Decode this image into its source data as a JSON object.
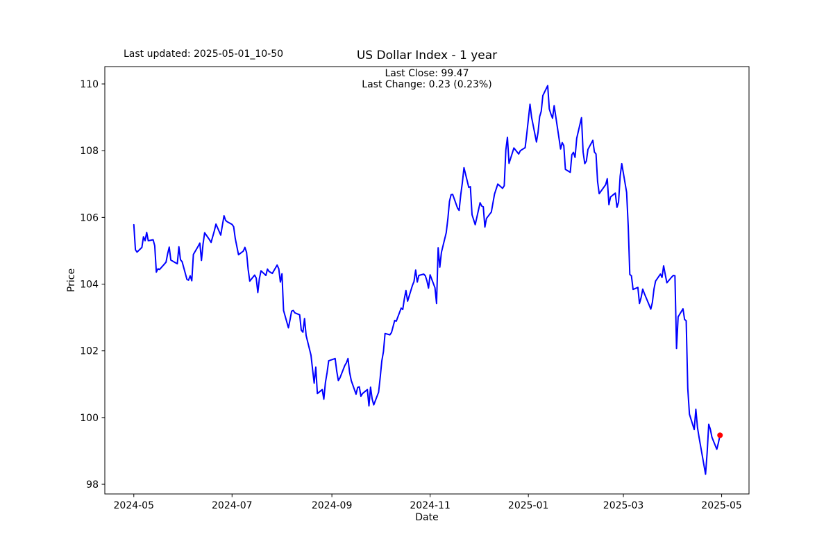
{
  "header": {
    "last_updated": "Last updated: 2025-05-01_10-50"
  },
  "chart_data": {
    "type": "line",
    "title": "US Dollar Index - 1 year",
    "annotations": {
      "line1": "Last Close: 99.47",
      "line2": "Last Change: 0.23 (0.23%)"
    },
    "xlabel": "Date",
    "ylabel": "Price",
    "grid": false,
    "legend": "none",
    "line_color": "#0000ff",
    "marker": {
      "x": "2025-04-30",
      "y": 99.47,
      "color": "#ff0000"
    },
    "xlim": [
      "2024-04-13",
      "2025-05-18"
    ],
    "ylim": [
      97.71,
      110.52
    ],
    "x_ticks": [
      {
        "date": "2024-05-01",
        "label": "2024-05"
      },
      {
        "date": "2024-07-01",
        "label": "2024-07"
      },
      {
        "date": "2024-09-01",
        "label": "2024-09"
      },
      {
        "date": "2024-11-01",
        "label": "2024-11"
      },
      {
        "date": "2025-01-01",
        "label": "2025-01"
      },
      {
        "date": "2025-03-01",
        "label": "2025-03"
      },
      {
        "date": "2025-05-01",
        "label": "2025-05"
      }
    ],
    "y_ticks": [
      98,
      100,
      102,
      104,
      106,
      108,
      110
    ],
    "series": [
      {
        "name": "US Dollar Index",
        "points": [
          [
            "2024-05-01",
            105.78
          ],
          [
            "2024-05-02",
            105.03
          ],
          [
            "2024-05-03",
            104.96
          ],
          [
            "2024-05-06",
            105.1
          ],
          [
            "2024-05-07",
            105.42
          ],
          [
            "2024-05-08",
            105.3
          ],
          [
            "2024-05-09",
            105.55
          ],
          [
            "2024-05-10",
            105.3
          ],
          [
            "2024-05-13",
            105.33
          ],
          [
            "2024-05-14",
            105.15
          ],
          [
            "2024-05-15",
            104.36
          ],
          [
            "2024-05-16",
            104.46
          ],
          [
            "2024-05-17",
            104.44
          ],
          [
            "2024-05-20",
            104.6
          ],
          [
            "2024-05-21",
            104.66
          ],
          [
            "2024-05-22",
            104.91
          ],
          [
            "2024-05-23",
            105.11
          ],
          [
            "2024-05-24",
            104.72
          ],
          [
            "2024-05-28",
            104.61
          ],
          [
            "2024-05-29",
            105.12
          ],
          [
            "2024-05-30",
            104.73
          ],
          [
            "2024-05-31",
            104.67
          ],
          [
            "2024-06-03",
            104.14
          ],
          [
            "2024-06-04",
            104.12
          ],
          [
            "2024-06-05",
            104.25
          ],
          [
            "2024-06-06",
            104.1
          ],
          [
            "2024-06-07",
            104.89
          ],
          [
            "2024-06-10",
            105.14
          ],
          [
            "2024-06-11",
            105.23
          ],
          [
            "2024-06-12",
            104.71
          ],
          [
            "2024-06-13",
            105.2
          ],
          [
            "2024-06-14",
            105.54
          ],
          [
            "2024-06-17",
            105.33
          ],
          [
            "2024-06-18",
            105.25
          ],
          [
            "2024-06-20",
            105.6
          ],
          [
            "2024-06-21",
            105.8
          ],
          [
            "2024-06-24",
            105.47
          ],
          [
            "2024-06-26",
            106.05
          ],
          [
            "2024-06-27",
            105.91
          ],
          [
            "2024-06-28",
            105.87
          ],
          [
            "2024-07-01",
            105.79
          ],
          [
            "2024-07-02",
            105.72
          ],
          [
            "2024-07-03",
            105.37
          ],
          [
            "2024-07-05",
            104.88
          ],
          [
            "2024-07-08",
            104.99
          ],
          [
            "2024-07-09",
            105.1
          ],
          [
            "2024-07-10",
            104.95
          ],
          [
            "2024-07-11",
            104.44
          ],
          [
            "2024-07-12",
            104.09
          ],
          [
            "2024-07-15",
            104.27
          ],
          [
            "2024-07-16",
            104.18
          ],
          [
            "2024-07-17",
            103.75
          ],
          [
            "2024-07-18",
            104.17
          ],
          [
            "2024-07-19",
            104.4
          ],
          [
            "2024-07-22",
            104.26
          ],
          [
            "2024-07-23",
            104.45
          ],
          [
            "2024-07-24",
            104.38
          ],
          [
            "2024-07-25",
            104.35
          ],
          [
            "2024-07-26",
            104.32
          ],
          [
            "2024-07-29",
            104.57
          ],
          [
            "2024-07-30",
            104.46
          ],
          [
            "2024-07-31",
            104.06
          ],
          [
            "2024-08-01",
            104.31
          ],
          [
            "2024-08-02",
            103.21
          ],
          [
            "2024-08-05",
            102.69
          ],
          [
            "2024-08-06",
            102.93
          ],
          [
            "2024-08-07",
            103.19
          ],
          [
            "2024-08-08",
            103.21
          ],
          [
            "2024-08-09",
            103.14
          ],
          [
            "2024-08-12",
            103.08
          ],
          [
            "2024-08-13",
            102.62
          ],
          [
            "2024-08-14",
            102.56
          ],
          [
            "2024-08-15",
            102.97
          ],
          [
            "2024-08-16",
            102.46
          ],
          [
            "2024-08-19",
            101.87
          ],
          [
            "2024-08-20",
            101.44
          ],
          [
            "2024-08-21",
            101.03
          ],
          [
            "2024-08-22",
            101.51
          ],
          [
            "2024-08-23",
            100.72
          ],
          [
            "2024-08-26",
            100.84
          ],
          [
            "2024-08-27",
            100.55
          ],
          [
            "2024-08-28",
            101.05
          ],
          [
            "2024-08-29",
            101.35
          ],
          [
            "2024-08-30",
            101.7
          ],
          [
            "2024-09-03",
            101.77
          ],
          [
            "2024-09-04",
            101.39
          ],
          [
            "2024-09-05",
            101.11
          ],
          [
            "2024-09-06",
            101.19
          ],
          [
            "2024-09-09",
            101.56
          ],
          [
            "2024-09-10",
            101.64
          ],
          [
            "2024-09-11",
            101.77
          ],
          [
            "2024-09-12",
            101.36
          ],
          [
            "2024-09-13",
            101.11
          ],
          [
            "2024-09-16",
            100.7
          ],
          [
            "2024-09-17",
            100.9
          ],
          [
            "2024-09-18",
            100.92
          ],
          [
            "2024-09-19",
            100.64
          ],
          [
            "2024-09-20",
            100.72
          ],
          [
            "2024-09-23",
            100.84
          ],
          [
            "2024-09-24",
            100.35
          ],
          [
            "2024-09-25",
            100.91
          ],
          [
            "2024-09-26",
            100.56
          ],
          [
            "2024-09-27",
            100.38
          ],
          [
            "2024-09-30",
            100.76
          ],
          [
            "2024-10-01",
            101.2
          ],
          [
            "2024-10-02",
            101.69
          ],
          [
            "2024-10-03",
            101.98
          ],
          [
            "2024-10-04",
            102.52
          ],
          [
            "2024-10-07",
            102.48
          ],
          [
            "2024-10-08",
            102.55
          ],
          [
            "2024-10-10",
            102.91
          ],
          [
            "2024-10-11",
            102.89
          ],
          [
            "2024-10-14",
            103.28
          ],
          [
            "2024-10-15",
            103.24
          ],
          [
            "2024-10-16",
            103.56
          ],
          [
            "2024-10-17",
            103.81
          ],
          [
            "2024-10-18",
            103.49
          ],
          [
            "2024-10-21",
            103.96
          ],
          [
            "2024-10-22",
            104.08
          ],
          [
            "2024-10-23",
            104.42
          ],
          [
            "2024-10-24",
            104.06
          ],
          [
            "2024-10-25",
            104.26
          ],
          [
            "2024-10-28",
            104.3
          ],
          [
            "2024-10-29",
            104.25
          ],
          [
            "2024-10-30",
            104.1
          ],
          [
            "2024-10-31",
            103.88
          ],
          [
            "2024-11-01",
            104.28
          ],
          [
            "2024-11-04",
            103.89
          ],
          [
            "2024-11-05",
            103.42
          ],
          [
            "2024-11-06",
            105.09
          ],
          [
            "2024-11-07",
            104.51
          ],
          [
            "2024-11-08",
            104.95
          ],
          [
            "2024-11-11",
            105.54
          ],
          [
            "2024-11-12",
            105.96
          ],
          [
            "2024-11-13",
            106.48
          ],
          [
            "2024-11-14",
            106.68
          ],
          [
            "2024-11-15",
            106.69
          ],
          [
            "2024-11-18",
            106.28
          ],
          [
            "2024-11-19",
            106.21
          ],
          [
            "2024-11-20",
            106.67
          ],
          [
            "2024-11-21",
            107.03
          ],
          [
            "2024-11-22",
            107.49
          ],
          [
            "2024-11-25",
            106.9
          ],
          [
            "2024-11-26",
            106.92
          ],
          [
            "2024-11-27",
            106.08
          ],
          [
            "2024-11-29",
            105.78
          ],
          [
            "2024-12-02",
            106.44
          ],
          [
            "2024-12-03",
            106.34
          ],
          [
            "2024-12-04",
            106.32
          ],
          [
            "2024-12-05",
            105.71
          ],
          [
            "2024-12-06",
            105.97
          ],
          [
            "2024-12-09",
            106.16
          ],
          [
            "2024-12-11",
            106.7
          ],
          [
            "2024-12-13",
            107.0
          ],
          [
            "2024-12-16",
            106.87
          ],
          [
            "2024-12-17",
            106.95
          ],
          [
            "2024-12-18",
            108.02
          ],
          [
            "2024-12-19",
            108.4
          ],
          [
            "2024-12-20",
            107.62
          ],
          [
            "2024-12-23",
            108.08
          ],
          [
            "2024-12-26",
            107.9
          ],
          [
            "2024-12-27",
            108.0
          ],
          [
            "2024-12-30",
            108.09
          ],
          [
            "2024-12-31",
            108.49
          ],
          [
            "2025-01-02",
            109.39
          ],
          [
            "2025-01-03",
            109.0
          ],
          [
            "2025-01-06",
            108.26
          ],
          [
            "2025-01-07",
            108.55
          ],
          [
            "2025-01-08",
            109.02
          ],
          [
            "2025-01-09",
            109.18
          ],
          [
            "2025-01-10",
            109.65
          ],
          [
            "2025-01-13",
            109.95
          ],
          [
            "2025-01-14",
            109.25
          ],
          [
            "2025-01-15",
            109.1
          ],
          [
            "2025-01-16",
            108.97
          ],
          [
            "2025-01-17",
            109.35
          ],
          [
            "2025-01-21",
            108.05
          ],
          [
            "2025-01-22",
            108.24
          ],
          [
            "2025-01-23",
            108.15
          ],
          [
            "2025-01-24",
            107.44
          ],
          [
            "2025-01-27",
            107.35
          ],
          [
            "2025-01-28",
            107.88
          ],
          [
            "2025-01-29",
            107.95
          ],
          [
            "2025-01-30",
            107.8
          ],
          [
            "2025-01-31",
            108.37
          ],
          [
            "2025-02-03",
            108.99
          ],
          [
            "2025-02-04",
            107.96
          ],
          [
            "2025-02-05",
            107.61
          ],
          [
            "2025-02-06",
            107.69
          ],
          [
            "2025-02-07",
            108.04
          ],
          [
            "2025-02-10",
            108.31
          ],
          [
            "2025-02-11",
            107.96
          ],
          [
            "2025-02-12",
            107.9
          ],
          [
            "2025-02-13",
            107.07
          ],
          [
            "2025-02-14",
            106.71
          ],
          [
            "2025-02-18",
            106.98
          ],
          [
            "2025-02-19",
            107.16
          ],
          [
            "2025-02-20",
            106.38
          ],
          [
            "2025-02-21",
            106.61
          ],
          [
            "2025-02-24",
            106.73
          ],
          [
            "2025-02-25",
            106.3
          ],
          [
            "2025-02-26",
            106.46
          ],
          [
            "2025-02-27",
            107.24
          ],
          [
            "2025-02-28",
            107.61
          ],
          [
            "2025-03-03",
            106.75
          ],
          [
            "2025-03-04",
            105.74
          ],
          [
            "2025-03-05",
            104.29
          ],
          [
            "2025-03-06",
            104.25
          ],
          [
            "2025-03-07",
            103.84
          ],
          [
            "2025-03-10",
            103.9
          ],
          [
            "2025-03-11",
            103.42
          ],
          [
            "2025-03-12",
            103.6
          ],
          [
            "2025-03-13",
            103.85
          ],
          [
            "2025-03-14",
            103.72
          ],
          [
            "2025-03-17",
            103.37
          ],
          [
            "2025-03-18",
            103.25
          ],
          [
            "2025-03-19",
            103.45
          ],
          [
            "2025-03-20",
            103.85
          ],
          [
            "2025-03-21",
            104.09
          ],
          [
            "2025-03-24",
            104.3
          ],
          [
            "2025-03-25",
            104.2
          ],
          [
            "2025-03-26",
            104.55
          ],
          [
            "2025-03-27",
            104.28
          ],
          [
            "2025-03-28",
            104.04
          ],
          [
            "2025-03-31",
            104.21
          ],
          [
            "2025-04-01",
            104.26
          ],
          [
            "2025-04-02",
            104.25
          ],
          [
            "2025-04-03",
            102.07
          ],
          [
            "2025-04-04",
            103.02
          ],
          [
            "2025-04-07",
            103.26
          ],
          [
            "2025-04-08",
            102.94
          ],
          [
            "2025-04-09",
            102.9
          ],
          [
            "2025-04-10",
            100.87
          ],
          [
            "2025-04-11",
            100.1
          ],
          [
            "2025-04-14",
            99.64
          ],
          [
            "2025-04-15",
            100.25
          ],
          [
            "2025-04-16",
            99.7
          ],
          [
            "2025-04-17",
            99.4
          ],
          [
            "2025-04-21",
            98.3
          ],
          [
            "2025-04-22",
            98.95
          ],
          [
            "2025-04-23",
            99.8
          ],
          [
            "2025-04-24",
            99.65
          ],
          [
            "2025-04-25",
            99.41
          ],
          [
            "2025-04-28",
            99.05
          ],
          [
            "2025-04-29",
            99.24
          ],
          [
            "2025-04-30",
            99.47
          ]
        ]
      }
    ]
  }
}
